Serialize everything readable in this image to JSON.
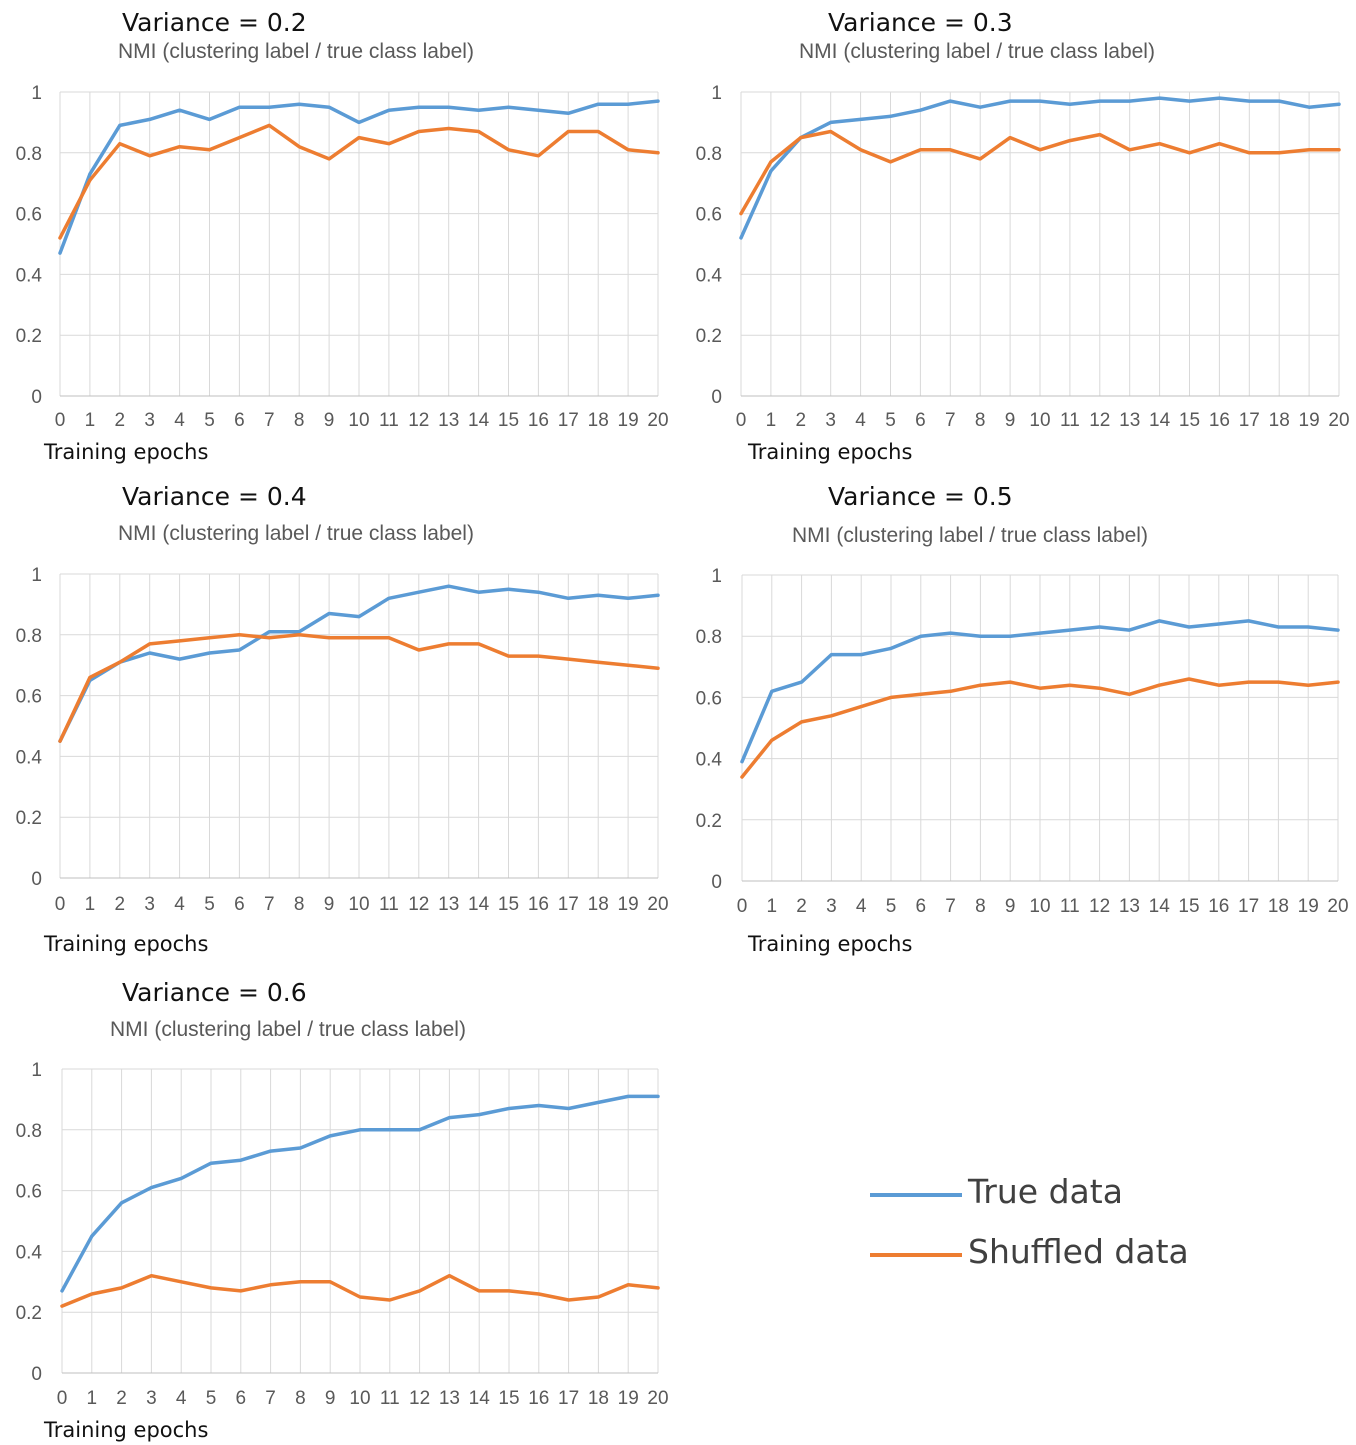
{
  "legend": {
    "true_label": "True data",
    "shuffled_label": "Shuffled data"
  },
  "colors": {
    "true": "#5B9BD5",
    "shuffled": "#ED7D31",
    "grid": "#D9D9D9",
    "axis": "#BFBFBF"
  },
  "chart_data": [
    {
      "type": "line",
      "title": "Variance = 0.2",
      "subtitle": "NMI  (clustering label / true class label)",
      "xlabel": "Training epochs",
      "ylabel": "",
      "x": [
        0,
        1,
        2,
        3,
        4,
        5,
        6,
        7,
        8,
        9,
        10,
        11,
        12,
        13,
        14,
        15,
        16,
        17,
        18,
        19,
        20
      ],
      "ylim": [
        0,
        1
      ],
      "yticks": [
        "0",
        "0.2",
        "0.4",
        "0.6",
        "0.8",
        "1"
      ],
      "grid": true,
      "series": [
        {
          "name": "True data",
          "values": [
            0.47,
            0.73,
            0.89,
            0.91,
            0.94,
            0.91,
            0.95,
            0.95,
            0.96,
            0.95,
            0.9,
            0.94,
            0.95,
            0.95,
            0.94,
            0.95,
            0.94,
            0.93,
            0.96,
            0.96,
            0.97
          ]
        },
        {
          "name": "Shuffled data",
          "values": [
            0.52,
            0.71,
            0.83,
            0.79,
            0.82,
            0.81,
            0.85,
            0.89,
            0.82,
            0.78,
            0.85,
            0.83,
            0.87,
            0.88,
            0.87,
            0.81,
            0.79,
            0.87,
            0.87,
            0.81,
            0.8
          ]
        }
      ]
    },
    {
      "type": "line",
      "title": "Variance = 0.3",
      "subtitle": "NMI  (clustering label / true class label)",
      "xlabel": "Training epochs",
      "ylabel": "",
      "x": [
        0,
        1,
        2,
        3,
        4,
        5,
        6,
        7,
        8,
        9,
        10,
        11,
        12,
        13,
        14,
        15,
        16,
        17,
        18,
        19,
        20
      ],
      "ylim": [
        0,
        1
      ],
      "yticks": [
        "0",
        "0.2",
        "0.4",
        "0.6",
        "0.8",
        "1"
      ],
      "grid": true,
      "series": [
        {
          "name": "True data",
          "values": [
            0.52,
            0.74,
            0.85,
            0.9,
            0.91,
            0.92,
            0.94,
            0.97,
            0.95,
            0.97,
            0.97,
            0.96,
            0.97,
            0.97,
            0.98,
            0.97,
            0.98,
            0.97,
            0.97,
            0.95,
            0.96
          ]
        },
        {
          "name": "Shuffled data",
          "values": [
            0.6,
            0.77,
            0.85,
            0.87,
            0.81,
            0.77,
            0.81,
            0.81,
            0.78,
            0.85,
            0.81,
            0.84,
            0.86,
            0.81,
            0.83,
            0.8,
            0.83,
            0.8,
            0.8,
            0.81,
            0.81
          ]
        }
      ]
    },
    {
      "type": "line",
      "title": "Variance = 0.4",
      "subtitle": "NMI  (clustering label / true class label)",
      "xlabel": "Training epochs",
      "ylabel": "",
      "x": [
        0,
        1,
        2,
        3,
        4,
        5,
        6,
        7,
        8,
        9,
        10,
        11,
        12,
        13,
        14,
        15,
        16,
        17,
        18,
        19,
        20
      ],
      "ylim": [
        0,
        1
      ],
      "yticks": [
        "0",
        "0.2",
        "0.4",
        "0.6",
        "0.8",
        "1"
      ],
      "grid": true,
      "series": [
        {
          "name": "True data",
          "values": [
            0.45,
            0.65,
            0.71,
            0.74,
            0.72,
            0.74,
            0.75,
            0.81,
            0.81,
            0.87,
            0.86,
            0.92,
            0.94,
            0.96,
            0.94,
            0.95,
            0.94,
            0.92,
            0.93,
            0.92,
            0.93
          ]
        },
        {
          "name": "Shuffled data",
          "values": [
            0.45,
            0.66,
            0.71,
            0.77,
            0.78,
            0.79,
            0.8,
            0.79,
            0.8,
            0.79,
            0.79,
            0.79,
            0.75,
            0.77,
            0.77,
            0.73,
            0.73,
            0.72,
            0.71,
            0.7,
            0.69
          ]
        }
      ]
    },
    {
      "type": "line",
      "title": "Variance = 0.5",
      "subtitle": "NMI  (clustering label / true class label)",
      "xlabel": "Training epochs",
      "ylabel": "",
      "x": [
        0,
        1,
        2,
        3,
        4,
        5,
        6,
        7,
        8,
        9,
        10,
        11,
        12,
        13,
        14,
        15,
        16,
        17,
        18,
        19,
        20
      ],
      "ylim": [
        0,
        1
      ],
      "yticks": [
        "0",
        "0.2",
        "0.4",
        "0.6",
        "0.8",
        "1"
      ],
      "grid": true,
      "series": [
        {
          "name": "True data",
          "values": [
            0.39,
            0.62,
            0.65,
            0.74,
            0.74,
            0.76,
            0.8,
            0.81,
            0.8,
            0.8,
            0.81,
            0.82,
            0.83,
            0.82,
            0.85,
            0.83,
            0.84,
            0.85,
            0.83,
            0.83,
            0.82
          ]
        },
        {
          "name": "Shuffled data",
          "values": [
            0.34,
            0.46,
            0.52,
            0.54,
            0.57,
            0.6,
            0.61,
            0.62,
            0.64,
            0.65,
            0.63,
            0.64,
            0.63,
            0.61,
            0.64,
            0.66,
            0.64,
            0.65,
            0.65,
            0.64,
            0.65
          ]
        }
      ]
    },
    {
      "type": "line",
      "title": "Variance = 0.6",
      "subtitle": "NMI  (clustering label / true class label)",
      "xlabel": "Training epochs",
      "ylabel": "",
      "x": [
        0,
        1,
        2,
        3,
        4,
        5,
        6,
        7,
        8,
        9,
        10,
        11,
        12,
        13,
        14,
        15,
        16,
        17,
        18,
        19,
        20
      ],
      "ylim": [
        0,
        1
      ],
      "yticks": [
        "0",
        "0.2",
        "0.4",
        "0.6",
        "0.8",
        "1"
      ],
      "grid": true,
      "series": [
        {
          "name": "True data",
          "values": [
            0.27,
            0.45,
            0.56,
            0.61,
            0.64,
            0.69,
            0.7,
            0.73,
            0.74,
            0.78,
            0.8,
            0.8,
            0.8,
            0.84,
            0.85,
            0.87,
            0.88,
            0.87,
            0.89,
            0.91,
            0.91
          ]
        },
        {
          "name": "Shuffled data",
          "values": [
            0.22,
            0.26,
            0.28,
            0.32,
            0.3,
            0.28,
            0.27,
            0.29,
            0.3,
            0.3,
            0.25,
            0.24,
            0.27,
            0.32,
            0.27,
            0.27,
            0.26,
            0.24,
            0.25,
            0.29,
            0.28
          ]
        }
      ]
    }
  ]
}
